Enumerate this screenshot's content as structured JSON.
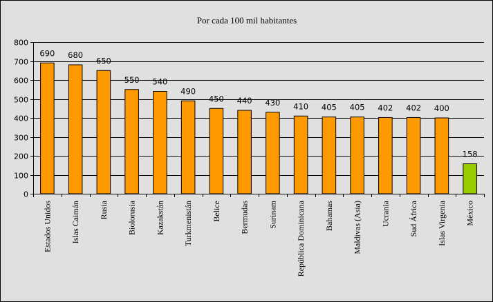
{
  "chart_data": {
    "type": "bar",
    "title": "Por cada 100 mil habitantes",
    "categories": [
      "Estados Unidos",
      "Islas Caimán",
      "Rusia",
      "Biolorusia",
      "Kazakstán",
      "Turkmenistán",
      "Belice",
      "Bermudas",
      "Surinam",
      "República Dominicana",
      "Bahamas",
      "Maldivas (Asia)",
      "Ucrania",
      "Sud África",
      "Islas Virgenia",
      "México"
    ],
    "values": [
      690,
      680,
      650,
      550,
      540,
      490,
      450,
      440,
      430,
      410,
      405,
      405,
      402,
      402,
      400,
      158
    ],
    "bar_colors": [
      "#ff9900",
      "#ff9900",
      "#ff9900",
      "#ff9900",
      "#ff9900",
      "#ff9900",
      "#ff9900",
      "#ff9900",
      "#ff9900",
      "#ff9900",
      "#ff9900",
      "#ff9900",
      "#ff9900",
      "#ff9900",
      "#ff9900",
      "#99cc00"
    ],
    "ylim": [
      0,
      800
    ],
    "yticks": [
      0,
      100,
      200,
      300,
      400,
      500,
      600,
      700,
      800
    ],
    "grid": true,
    "legend": false,
    "plot_background": "#e0e0e0"
  }
}
